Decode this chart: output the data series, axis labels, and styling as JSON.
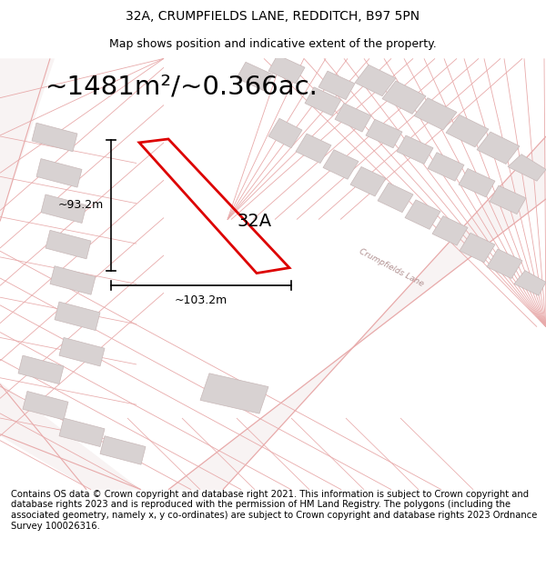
{
  "title_line1": "32A, CRUMPFIELDS LANE, REDDITCH, B97 5PN",
  "title_line2": "Map shows position and indicative extent of the property.",
  "area_text": "~1481m²/~0.366ac.",
  "label_32A": "32A",
  "dim_width": "~103.2m",
  "dim_height": "~93.2m",
  "footer_text": "Contains OS data © Crown copyright and database right 2021. This information is subject to Crown copyright and database rights 2023 and is reproduced with the permission of HM Land Registry. The polygons (including the associated geometry, namely x, y co-ordinates) are subject to Crown copyright and database rights 2023 Ordnance Survey 100026316.",
  "bg_color": "#ffffff",
  "road_outline_color": "#e8aaaa",
  "road_fill_color": "#f5f0f0",
  "building_fill": "#d8d2d2",
  "building_edge": "#c8b8b8",
  "highlight_color": "#dd0000",
  "road_label_color": "#b09090",
  "title_fontsize": 10,
  "subtitle_fontsize": 9,
  "area_fontsize": 21,
  "footer_fontsize": 7.2,
  "dim_fontsize": 9,
  "label_fontsize": 14
}
